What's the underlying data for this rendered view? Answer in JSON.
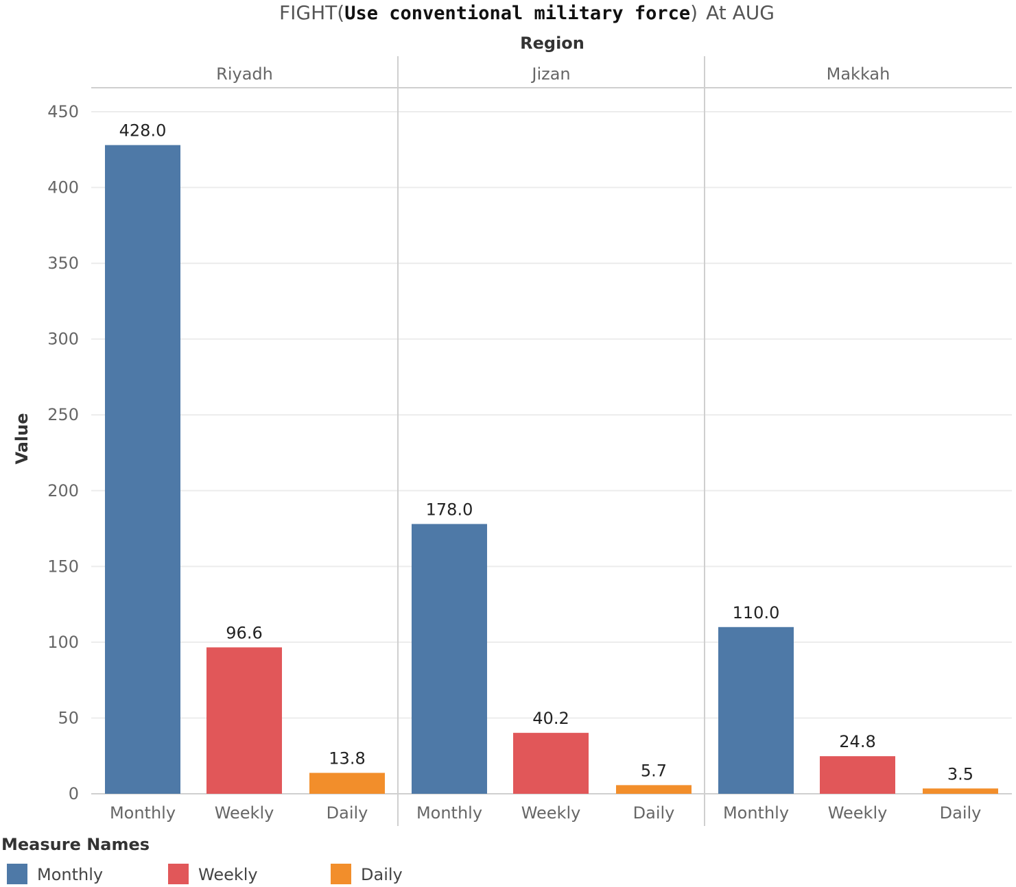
{
  "title": {
    "prefix": "FIGHT",
    "open_paren": "(",
    "code": "Use conventional military force",
    "close_paren": ")",
    "suffix": "At AUG"
  },
  "region_header": "Region",
  "colors": {
    "Monthly": "#4e79a7",
    "Weekly": "#e15759",
    "Daily": "#f28e2b",
    "gridline": "#ececec",
    "divider": "#cfcfcf"
  },
  "legend": {
    "title": "Measure Names",
    "items": [
      "Monthly",
      "Weekly",
      "Daily"
    ]
  },
  "chart_data": {
    "type": "bar",
    "title": "FIGHT(Use conventional military force) At AUG",
    "ylabel": "Value",
    "xlabel": "",
    "ylim": [
      0,
      450
    ],
    "yticks": [
      0,
      50,
      100,
      150,
      200,
      250,
      300,
      350,
      400,
      450
    ],
    "grid": true,
    "facet_label": "Region",
    "categories": [
      "Monthly",
      "Weekly",
      "Daily"
    ],
    "panels": [
      {
        "region": "Riyadh",
        "values": [
          428.0,
          96.6,
          13.8
        ],
        "labels": [
          "428.0",
          "96.6",
          "13.8"
        ]
      },
      {
        "region": "Jizan",
        "values": [
          178.0,
          40.2,
          5.7
        ],
        "labels": [
          "178.0",
          "40.2",
          "5.7"
        ]
      },
      {
        "region": "Makkah",
        "values": [
          110.0,
          24.8,
          3.5
        ],
        "labels": [
          "110.0",
          "24.8",
          "3.5"
        ]
      }
    ],
    "legend_position": "bottom-left"
  }
}
